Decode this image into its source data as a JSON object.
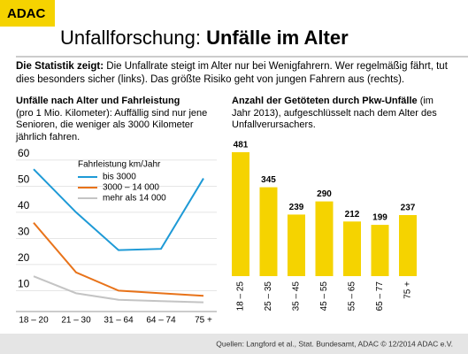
{
  "header": {
    "logo": "ADAC",
    "title_light": "Unfallforschung:",
    "title_bold": "Unfälle im Alter"
  },
  "intro": {
    "lead": "Die Statistik zeigt:",
    "text": "Die Unfallrate steigt im Alter nur bei Wenigfahrern. Wer regelmäßig fährt, tut dies besonders sicher (links). Das größte Risiko geht von jungen Fahrern aus (rechts)."
  },
  "chart_data": [
    {
      "type": "line",
      "title": "Unfälle nach Alter und Fahrleistung",
      "subtitle": "(pro 1 Mio. Kilometer): Auffällig sind nur jene Senioren,  die weniger als 3000 Kilometer jährlich fahren.",
      "legend_title": "Fahrleistung km/Jahr",
      "categories": [
        "18 – 20",
        "21 – 30",
        "31 – 64",
        "64 – 74",
        "75 +"
      ],
      "series": [
        {
          "name": "bis 3000",
          "color": "#1e9ad6",
          "values": [
            56.5,
            40,
            25.5,
            26,
            53
          ]
        },
        {
          "name": "3000 – 14 000",
          "color": "#e8731a",
          "values": [
            36,
            17,
            10,
            9,
            8
          ]
        },
        {
          "name": "mehr als 14 000",
          "color": "#c4c4c4",
          "values": [
            15.5,
            9,
            6.5,
            6,
            5.5
          ]
        }
      ],
      "ylim": [
        2,
        62
      ],
      "yticks": [
        10,
        20,
        30,
        40,
        50,
        60
      ],
      "grid": true
    },
    {
      "type": "bar",
      "title": "Anzahl der Getöteten durch Pkw-Unfälle",
      "subtitle": "(im Jahr 2013), aufgeschlüsselt nach dem Alter des Unfallverursachers.",
      "categories": [
        "18 – 25",
        "25 – 35",
        "35 – 45",
        "45 – 55",
        "55 – 65",
        "65 – 77",
        "75 +"
      ],
      "values": [
        481,
        345,
        239,
        290,
        212,
        199,
        237
      ],
      "color": "#f5d300"
    }
  ],
  "footer": {
    "source": "Quellen: Langford et al., Stat. Bundesamt, ADAC  © 12/2014 ADAC e.V."
  }
}
